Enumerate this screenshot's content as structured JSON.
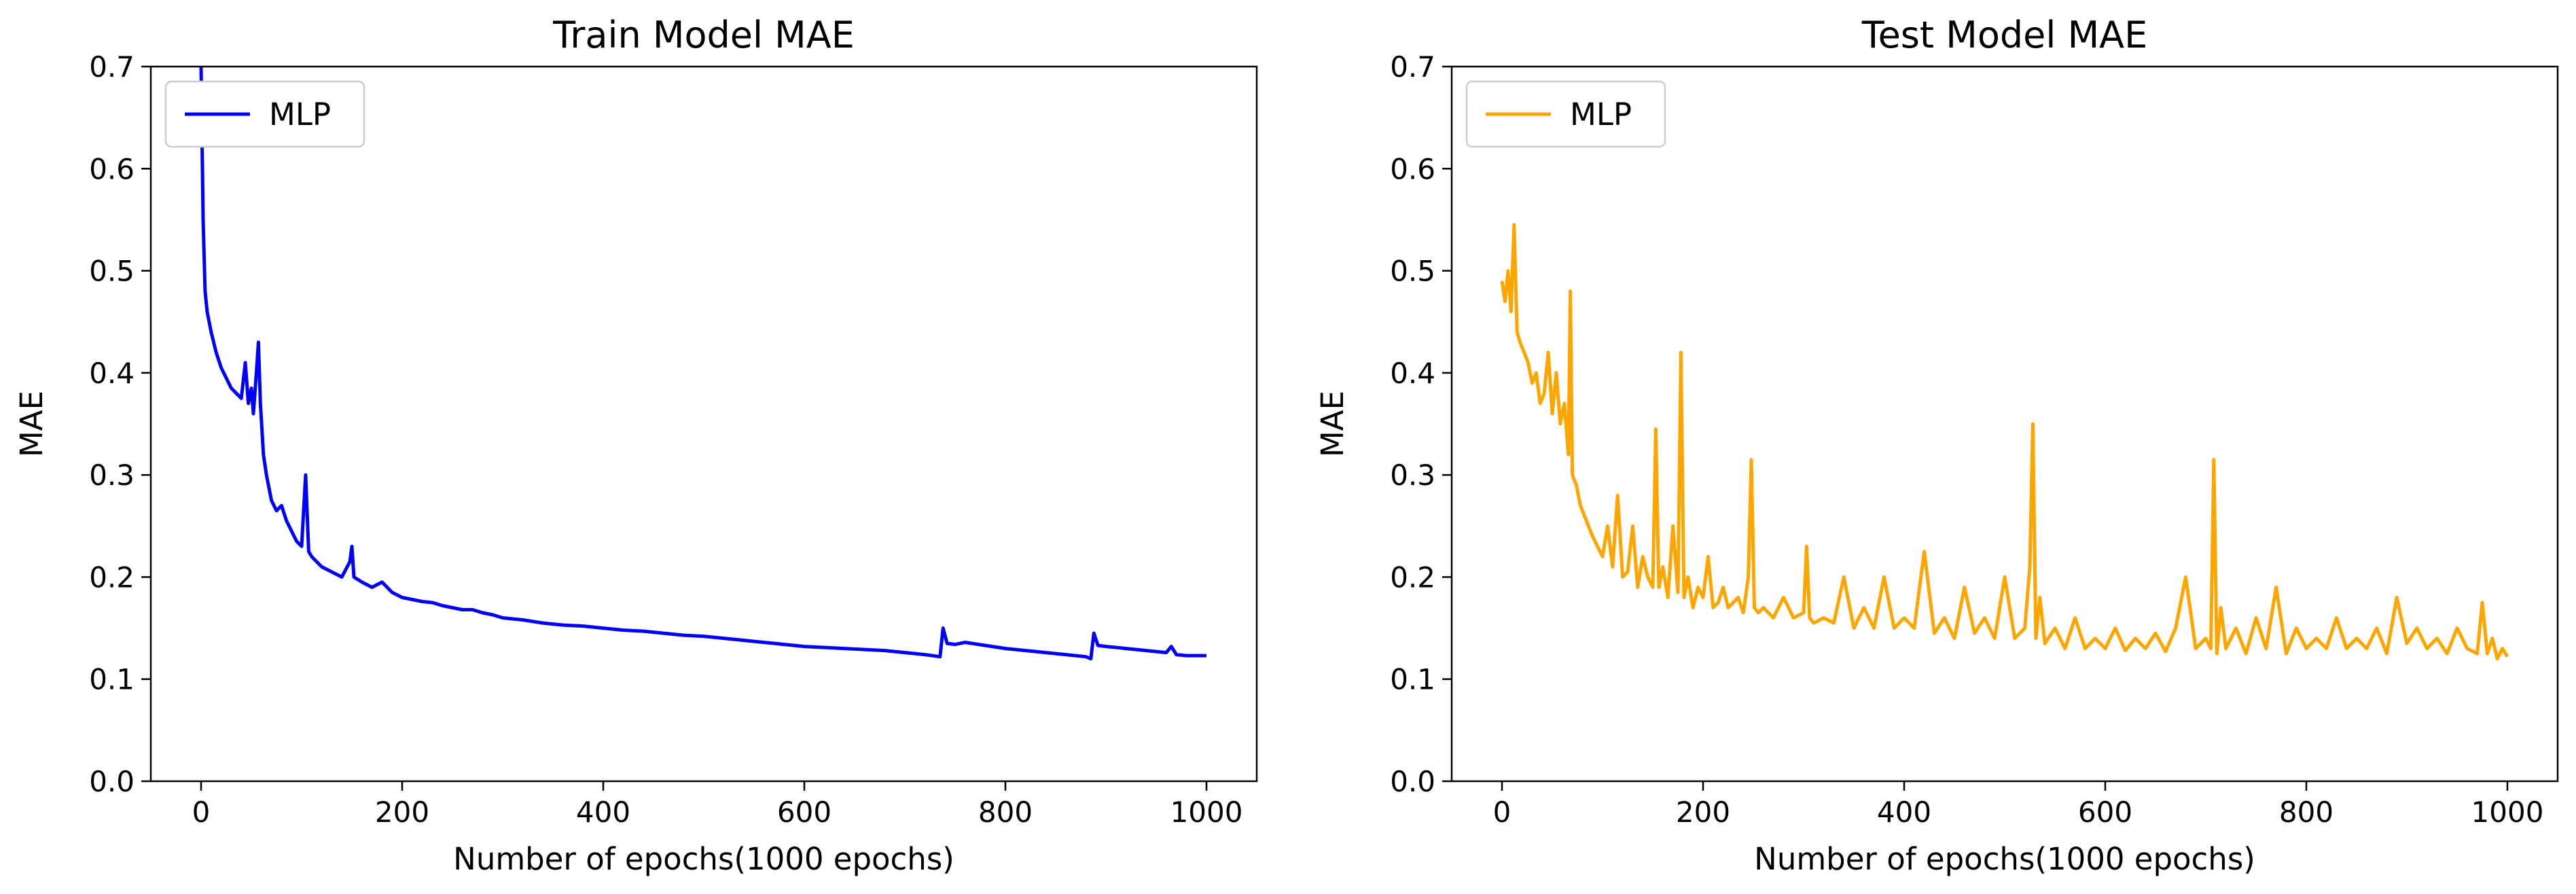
{
  "chart_data": [
    {
      "type": "line",
      "title": "Train Model MAE",
      "xlabel": "Number of epochs(1000 epochs)",
      "ylabel": "MAE",
      "xlim": [
        -50,
        1050
      ],
      "ylim": [
        0.0,
        0.7
      ],
      "xticks": [
        "0",
        "200",
        "400",
        "600",
        "800",
        "1000"
      ],
      "yticks": [
        "0.0",
        "0.1",
        "0.2",
        "0.3",
        "0.4",
        "0.5",
        "0.6",
        "0.7"
      ],
      "legend": {
        "position": "upper-left",
        "entries": [
          "MLP"
        ]
      },
      "grid": false,
      "series": [
        {
          "name": "MLP",
          "color": "#0000ff",
          "x": [
            0,
            2,
            4,
            6,
            10,
            15,
            20,
            25,
            30,
            35,
            40,
            44,
            47,
            50,
            52,
            55,
            57,
            59,
            62,
            65,
            70,
            75,
            80,
            85,
            90,
            95,
            100,
            104,
            107,
            110,
            115,
            120,
            130,
            140,
            148,
            150,
            152,
            160,
            170,
            180,
            190,
            200,
            210,
            220,
            230,
            240,
            250,
            260,
            270,
            280,
            290,
            300,
            320,
            340,
            360,
            380,
            400,
            420,
            440,
            460,
            480,
            500,
            520,
            540,
            560,
            580,
            600,
            620,
            640,
            660,
            680,
            700,
            720,
            735,
            738,
            742,
            750,
            760,
            780,
            800,
            820,
            840,
            860,
            880,
            885,
            888,
            892,
            900,
            920,
            940,
            960,
            965,
            970,
            980,
            1000
          ],
          "y": [
            0.7,
            0.55,
            0.48,
            0.46,
            0.44,
            0.42,
            0.405,
            0.395,
            0.385,
            0.38,
            0.375,
            0.41,
            0.37,
            0.385,
            0.36,
            0.4,
            0.43,
            0.37,
            0.32,
            0.3,
            0.275,
            0.265,
            0.27,
            0.255,
            0.245,
            0.235,
            0.23,
            0.3,
            0.225,
            0.22,
            0.215,
            0.21,
            0.205,
            0.2,
            0.215,
            0.23,
            0.2,
            0.195,
            0.19,
            0.195,
            0.185,
            0.18,
            0.178,
            0.176,
            0.175,
            0.172,
            0.17,
            0.168,
            0.168,
            0.165,
            0.163,
            0.16,
            0.158,
            0.155,
            0.153,
            0.152,
            0.15,
            0.148,
            0.147,
            0.145,
            0.143,
            0.142,
            0.14,
            0.138,
            0.136,
            0.134,
            0.132,
            0.131,
            0.13,
            0.129,
            0.128,
            0.126,
            0.124,
            0.122,
            0.15,
            0.135,
            0.134,
            0.136,
            0.133,
            0.13,
            0.128,
            0.126,
            0.124,
            0.122,
            0.12,
            0.145,
            0.133,
            0.132,
            0.13,
            0.128,
            0.126,
            0.132,
            0.124,
            0.123,
            0.123
          ]
        }
      ]
    },
    {
      "type": "line",
      "title": "Test Model MAE",
      "xlabel": "Number of epochs(1000 epochs)",
      "ylabel": "MAE",
      "xlim": [
        -50,
        1050
      ],
      "ylim": [
        0.0,
        0.7
      ],
      "xticks": [
        "0",
        "200",
        "400",
        "600",
        "800",
        "1000"
      ],
      "yticks": [
        "0.0",
        "0.1",
        "0.2",
        "0.3",
        "0.4",
        "0.5",
        "0.6",
        "0.7"
      ],
      "legend": {
        "position": "upper-left",
        "entries": [
          "MLP"
        ]
      },
      "grid": false,
      "series": [
        {
          "name": "MLP",
          "color": "#ffa500",
          "x": [
            0,
            3,
            6,
            9,
            12,
            15,
            18,
            22,
            26,
            30,
            34,
            38,
            42,
            46,
            50,
            54,
            58,
            62,
            66,
            68,
            70,
            74,
            78,
            82,
            86,
            90,
            95,
            100,
            105,
            110,
            115,
            120,
            125,
            130,
            135,
            140,
            145,
            150,
            153,
            156,
            160,
            165,
            170,
            175,
            178,
            181,
            185,
            190,
            195,
            200,
            205,
            210,
            215,
            220,
            225,
            230,
            235,
            240,
            245,
            248,
            251,
            255,
            260,
            270,
            280,
            290,
            300,
            303,
            306,
            310,
            320,
            330,
            340,
            350,
            360,
            370,
            380,
            390,
            400,
            410,
            420,
            430,
            440,
            450,
            460,
            470,
            480,
            490,
            500,
            510,
            520,
            525,
            528,
            531,
            535,
            540,
            550,
            560,
            570,
            580,
            590,
            600,
            610,
            620,
            630,
            640,
            650,
            660,
            670,
            680,
            690,
            700,
            705,
            708,
            711,
            715,
            720,
            730,
            740,
            750,
            760,
            770,
            780,
            790,
            800,
            810,
            820,
            830,
            840,
            850,
            860,
            870,
            880,
            890,
            900,
            910,
            920,
            930,
            940,
            950,
            960,
            970,
            975,
            980,
            985,
            990,
            995,
            1000
          ],
          "y": [
            0.49,
            0.47,
            0.5,
            0.46,
            0.545,
            0.44,
            0.43,
            0.42,
            0.41,
            0.39,
            0.4,
            0.37,
            0.38,
            0.42,
            0.36,
            0.4,
            0.35,
            0.37,
            0.32,
            0.48,
            0.3,
            0.29,
            0.27,
            0.26,
            0.25,
            0.24,
            0.23,
            0.22,
            0.25,
            0.21,
            0.28,
            0.2,
            0.205,
            0.25,
            0.19,
            0.22,
            0.2,
            0.19,
            0.345,
            0.19,
            0.21,
            0.18,
            0.25,
            0.185,
            0.42,
            0.18,
            0.2,
            0.17,
            0.19,
            0.18,
            0.22,
            0.17,
            0.175,
            0.19,
            0.17,
            0.175,
            0.18,
            0.165,
            0.2,
            0.315,
            0.17,
            0.165,
            0.17,
            0.16,
            0.18,
            0.16,
            0.165,
            0.23,
            0.16,
            0.155,
            0.16,
            0.155,
            0.2,
            0.15,
            0.17,
            0.15,
            0.2,
            0.15,
            0.16,
            0.15,
            0.225,
            0.145,
            0.16,
            0.14,
            0.19,
            0.145,
            0.16,
            0.14,
            0.2,
            0.14,
            0.15,
            0.21,
            0.35,
            0.14,
            0.18,
            0.135,
            0.15,
            0.13,
            0.16,
            0.13,
            0.14,
            0.13,
            0.15,
            0.128,
            0.14,
            0.13,
            0.145,
            0.127,
            0.15,
            0.2,
            0.13,
            0.14,
            0.13,
            0.315,
            0.125,
            0.17,
            0.13,
            0.15,
            0.125,
            0.16,
            0.13,
            0.19,
            0.125,
            0.15,
            0.13,
            0.14,
            0.13,
            0.16,
            0.13,
            0.14,
            0.13,
            0.15,
            0.125,
            0.18,
            0.135,
            0.15,
            0.13,
            0.14,
            0.125,
            0.15,
            0.13,
            0.125,
            0.175,
            0.125,
            0.14,
            0.12,
            0.13,
            0.122
          ]
        }
      ]
    }
  ]
}
